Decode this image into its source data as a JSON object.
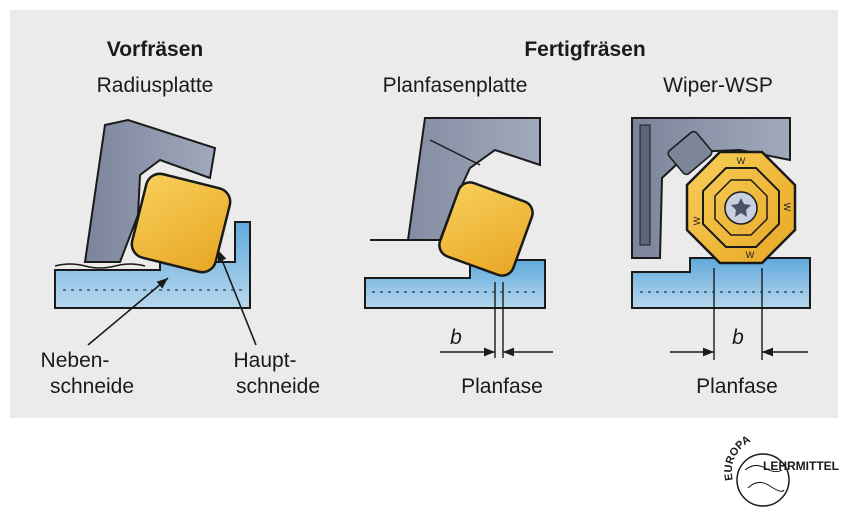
{
  "headings": {
    "roughing": "Vorfräsen",
    "finishing": "Fertigfräsen"
  },
  "columns": {
    "radius": {
      "title": "Radiusplatte",
      "secondary_edge": [
        "Neben-",
        "schneide"
      ],
      "main_edge": [
        "Haupt-",
        "schneide"
      ]
    },
    "chamfer": {
      "title": "Planfasenplatte",
      "dimension": "b",
      "bottom_label": "Planfase"
    },
    "wiper": {
      "title": "Wiper-WSP",
      "dimension": "b",
      "bottom_label": "Planfase",
      "insert_marks": [
        "W",
        "W",
        "W",
        "W"
      ]
    }
  },
  "logo": {
    "arc_text": "EUROPA",
    "brand_text": "LEHRMITTEL"
  },
  "colors": {
    "panel": "#ebebeb",
    "holder": "#8e97ad",
    "holder_dark": "#5d6678",
    "insert": "#f2bb3c",
    "workpiece": "#9fc7e4",
    "outline": "#1a1a1a"
  }
}
